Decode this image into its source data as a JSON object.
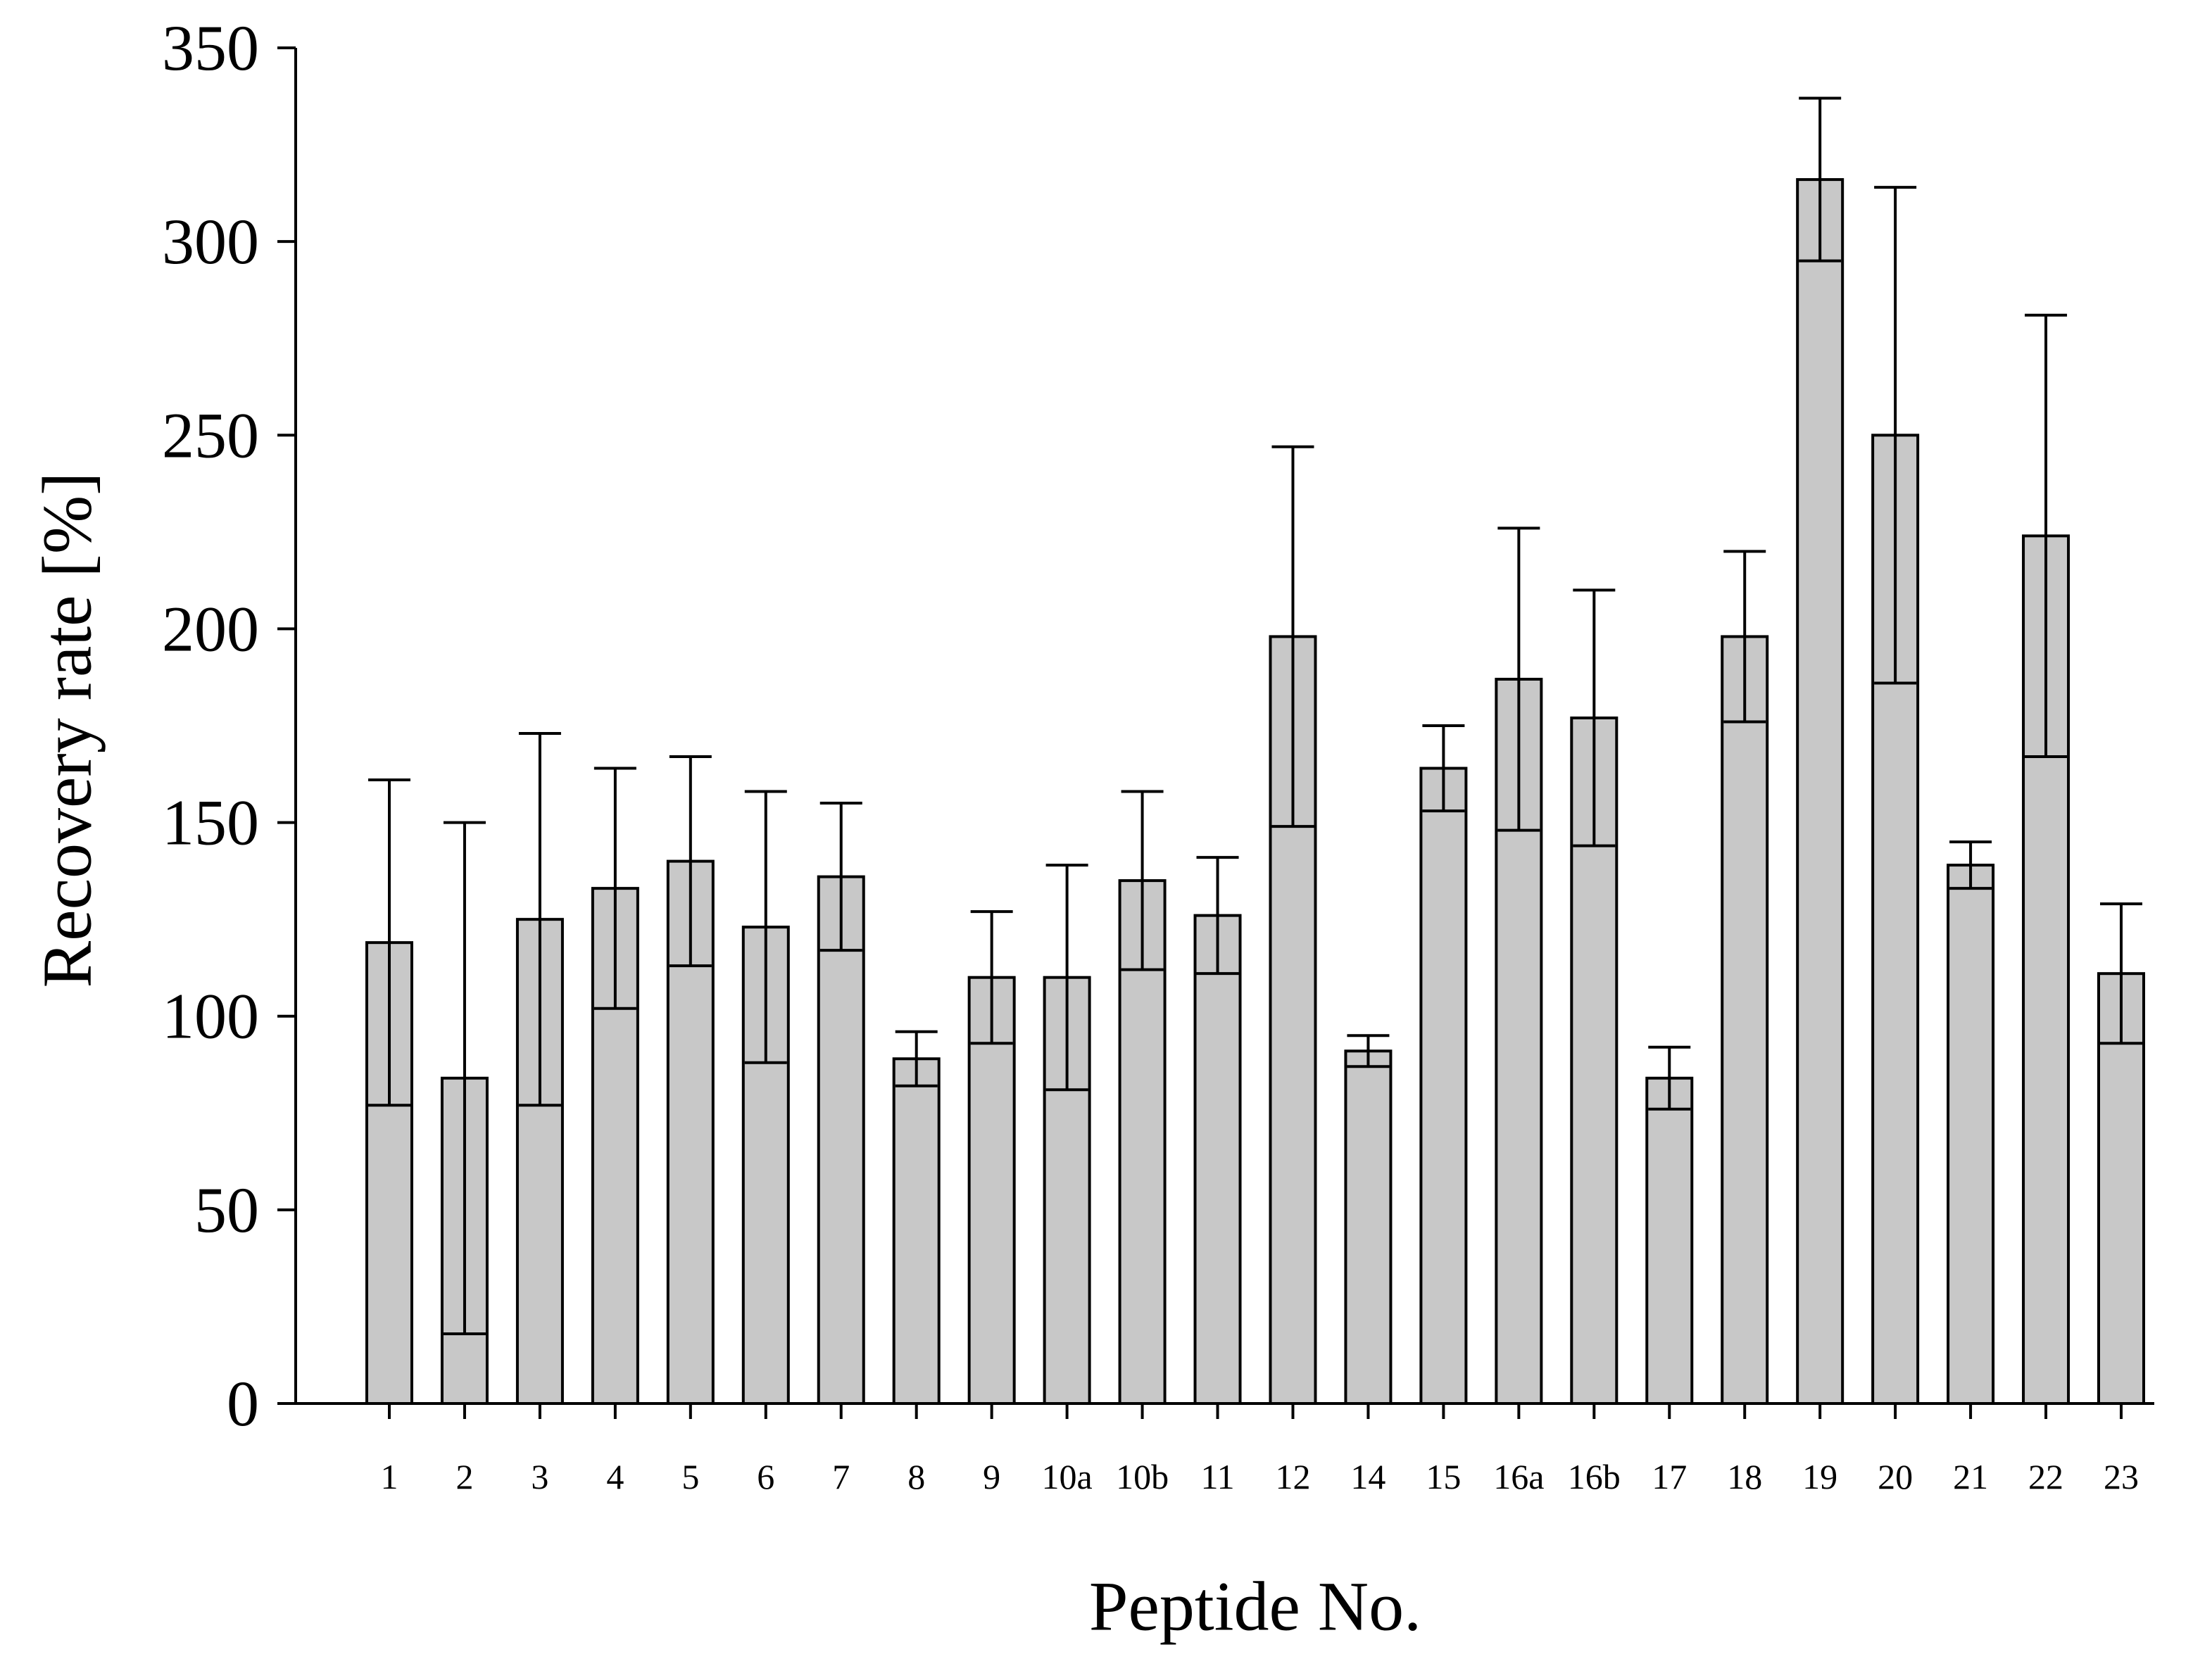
{
  "chart_data": {
    "type": "bar",
    "title": "",
    "xlabel": "Peptide No.",
    "ylabel": "Recovery rate [%]",
    "ylim": [
      0,
      350
    ],
    "yticks": [
      0,
      50,
      100,
      150,
      200,
      250,
      300,
      350
    ],
    "grid": false,
    "legend": "none",
    "bar_color": "#c8c8c8",
    "edge_color": "#000000",
    "categories": [
      "1",
      "2",
      "3",
      "4",
      "5",
      "6",
      "7",
      "8",
      "9",
      "10a",
      "10b",
      "11",
      "12",
      "14",
      "15",
      "16a",
      "16b",
      "17",
      "18",
      "19",
      "20",
      "21",
      "22",
      "23"
    ],
    "values": [
      119,
      84,
      125,
      133,
      140,
      123,
      136,
      89,
      110,
      110,
      135,
      126,
      198,
      91,
      164,
      187,
      177,
      84,
      198,
      316,
      250,
      139,
      224,
      111
    ],
    "errors": [
      42,
      66,
      48,
      31,
      27,
      35,
      19,
      7,
      17,
      29,
      23,
      15,
      49,
      4,
      11,
      39,
      33,
      8,
      22,
      21,
      64,
      6,
      57,
      18
    ]
  }
}
